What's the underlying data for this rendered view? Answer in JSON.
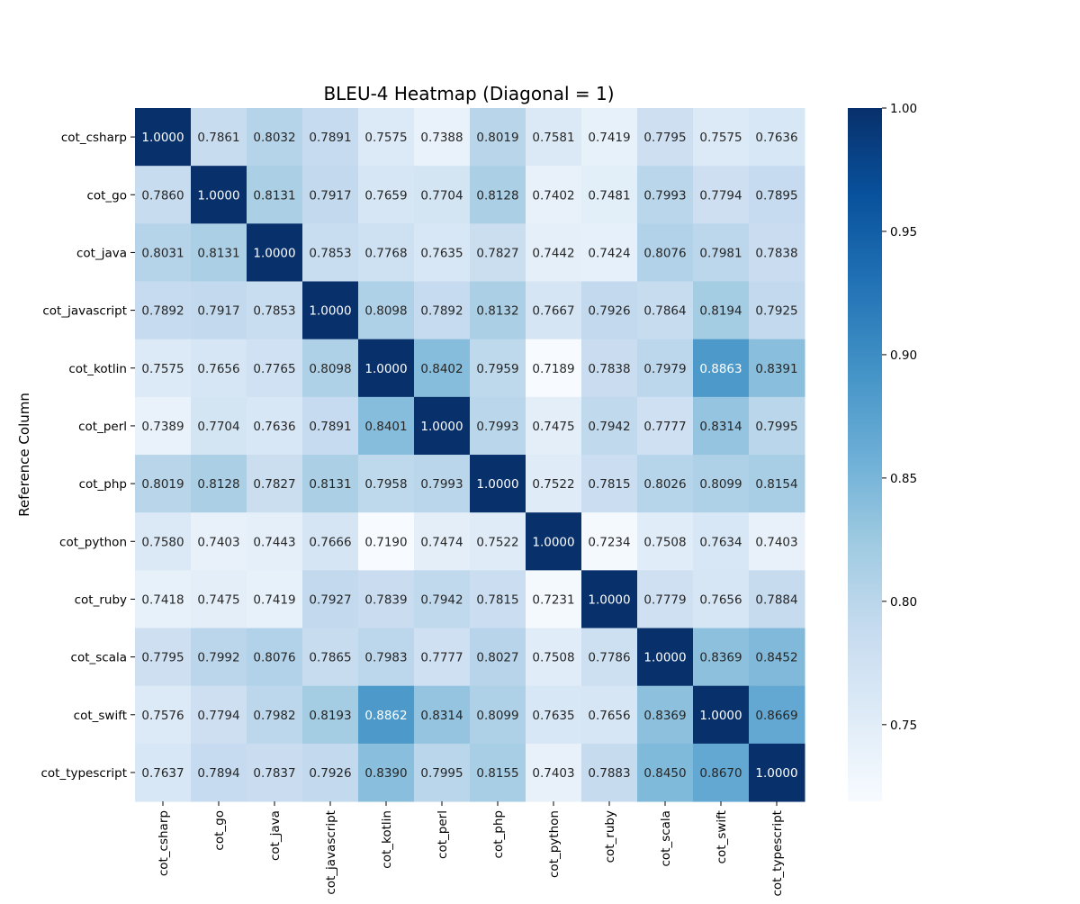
{
  "chart_data": {
    "type": "heatmap",
    "title": "BLEU-4 Heatmap (Diagonal = 1)",
    "ylabel": "Reference Column",
    "xlabel": "",
    "rows": [
      "cot_csharp",
      "cot_go",
      "cot_java",
      "cot_javascript",
      "cot_kotlin",
      "cot_perl",
      "cot_php",
      "cot_python",
      "cot_ruby",
      "cot_scala",
      "cot_swift",
      "cot_typescript"
    ],
    "columns": [
      "cot_csharp",
      "cot_go",
      "cot_java",
      "cot_javascript",
      "cot_kotlin",
      "cot_perl",
      "cot_php",
      "cot_python",
      "cot_ruby",
      "cot_scala",
      "cot_swift",
      "cot_typescript"
    ],
    "values": [
      [
        1.0,
        0.7861,
        0.8032,
        0.7891,
        0.7575,
        0.7388,
        0.8019,
        0.7581,
        0.7419,
        0.7795,
        0.7575,
        0.7636
      ],
      [
        0.786,
        1.0,
        0.8131,
        0.7917,
        0.7659,
        0.7704,
        0.8128,
        0.7402,
        0.7481,
        0.7993,
        0.7794,
        0.7895
      ],
      [
        0.8031,
        0.8131,
        1.0,
        0.7853,
        0.7768,
        0.7635,
        0.7827,
        0.7442,
        0.7424,
        0.8076,
        0.7981,
        0.7838
      ],
      [
        0.7892,
        0.7917,
        0.7853,
        1.0,
        0.8098,
        0.7892,
        0.8132,
        0.7667,
        0.7926,
        0.7864,
        0.8194,
        0.7925
      ],
      [
        0.7575,
        0.7656,
        0.7765,
        0.8098,
        1.0,
        0.8402,
        0.7959,
        0.7189,
        0.7838,
        0.7979,
        0.8863,
        0.8391
      ],
      [
        0.7389,
        0.7704,
        0.7636,
        0.7891,
        0.8401,
        1.0,
        0.7993,
        0.7475,
        0.7942,
        0.7777,
        0.8314,
        0.7995
      ],
      [
        0.8019,
        0.8128,
        0.7827,
        0.8131,
        0.7958,
        0.7993,
        1.0,
        0.7522,
        0.7815,
        0.8026,
        0.8099,
        0.8154
      ],
      [
        0.758,
        0.7403,
        0.7443,
        0.7666,
        0.719,
        0.7474,
        0.7522,
        1.0,
        0.7234,
        0.7508,
        0.7634,
        0.7403
      ],
      [
        0.7418,
        0.7475,
        0.7419,
        0.7927,
        0.7839,
        0.7942,
        0.7815,
        0.7231,
        1.0,
        0.7779,
        0.7656,
        0.7884
      ],
      [
        0.7795,
        0.7992,
        0.8076,
        0.7865,
        0.7983,
        0.7777,
        0.8027,
        0.7508,
        0.7786,
        1.0,
        0.8369,
        0.8452
      ],
      [
        0.7576,
        0.7794,
        0.7982,
        0.8193,
        0.8862,
        0.8314,
        0.8099,
        0.7635,
        0.7656,
        0.8369,
        1.0,
        0.8669
      ],
      [
        0.7637,
        0.7894,
        0.7837,
        0.7926,
        0.839,
        0.7995,
        0.8155,
        0.7403,
        0.7883,
        0.845,
        0.867,
        1.0
      ]
    ],
    "value_format": "4 decimals",
    "colormap": "Blues",
    "color_range": [
      0.7189,
      1.0
    ],
    "colorbar": {
      "ticks": [
        0.75,
        0.8,
        0.85,
        0.9,
        0.95,
        1.0
      ],
      "tick_labels": [
        "0.75",
        "0.80",
        "0.85",
        "0.90",
        "0.95",
        "1.00"
      ],
      "placement": "right"
    },
    "colors": {
      "blues_stops": [
        "#f7fbff",
        "#deebf7",
        "#c6dbef",
        "#9ecae1",
        "#6baed6",
        "#4292c6",
        "#2171b5",
        "#08519c",
        "#08306b"
      ],
      "text_dark": "#262626",
      "text_light": "#ffffff"
    }
  }
}
